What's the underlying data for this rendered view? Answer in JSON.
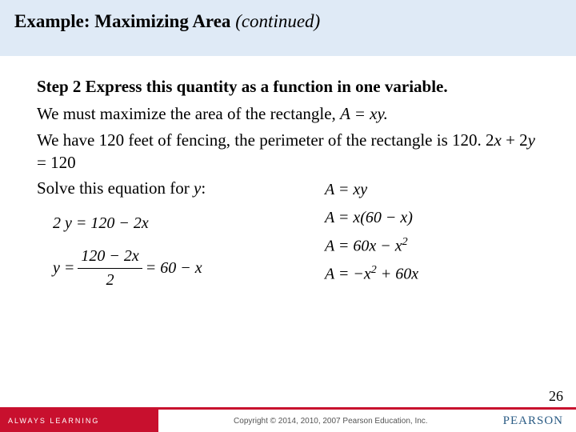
{
  "title": {
    "main": "Example:  Maximizing Area  ",
    "continued": "(continued)"
  },
  "body": {
    "step_heading": "Step 2  Express this quantity as a function in one variable.",
    "p1_a": "We must maximize the area of the rectangle, ",
    "p1_eq": "A = xy.",
    "p2_a": "We have 120 feet of fencing, the perimeter of the rectangle is 120.  2",
    "p2_x": "x",
    "p2_mid": " + 2",
    "p2_y": "y",
    "p2_end": " = 120",
    "p3_a": "Solve this equation for ",
    "p3_y": "y",
    "p3_colon": ":"
  },
  "eq_left": {
    "row1": "2 y = 120 − 2x",
    "row2_lhs": "y = ",
    "row2_num": "120 − 2x",
    "row2_den": "2",
    "row2_rhs": " = 60 − x"
  },
  "eq_right": {
    "r1": "A = xy",
    "r2": "A = x(60 − x)",
    "r3_a": "A = 60x − x",
    "r3_sup": "2",
    "r4_a": "A = −x",
    "r4_sup": "2",
    "r4_b": " + 60x"
  },
  "footer": {
    "always": "ALWAYS LEARNING",
    "copyright": "Copyright © 2014, 2010, 2007 Pearson Education, Inc.",
    "brand": "PEARSON",
    "page": "26"
  },
  "colors": {
    "title_band": "#dfeaf6",
    "red": "#c8102e",
    "pearson_blue": "#2a5b84"
  }
}
